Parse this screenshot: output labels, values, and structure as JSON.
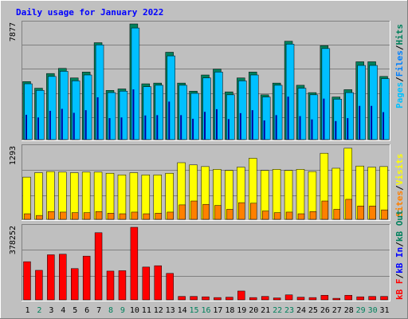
{
  "title": "Daily usage for January 2022",
  "colors": {
    "background": "#c0c0c0",
    "plot_bg": "#bfbfbf",
    "title_text": "#0000ff",
    "axis_text": "#000000",
    "hits": "#00805c",
    "files": "#0080ff",
    "pages": "#00c0ff",
    "visits": "#ffff00",
    "sites": "#ff8000",
    "kbytes": "#ff0000",
    "weekend_day": "#00805c",
    "weekday_day": "#000000"
  },
  "chart_data": [
    {
      "type": "bar",
      "name": "requests",
      "categories": [
        "1",
        "2",
        "3",
        "4",
        "5",
        "6",
        "7",
        "8",
        "9",
        "10",
        "11",
        "12",
        "13",
        "14",
        "15",
        "16",
        "17",
        "18",
        "19",
        "20",
        "21",
        "22",
        "23",
        "24",
        "25",
        "26",
        "27",
        "28",
        "29",
        "30",
        "31"
      ],
      "weekend": [
        false,
        true,
        false,
        false,
        false,
        false,
        false,
        true,
        true,
        false,
        false,
        false,
        false,
        false,
        true,
        true,
        false,
        false,
        false,
        false,
        false,
        true,
        true,
        false,
        false,
        false,
        false,
        false,
        true,
        true,
        false
      ],
      "ylim": [
        0,
        7877
      ],
      "ytick_label": "7877",
      "legend": [
        "Pages",
        "Files",
        "Hits"
      ],
      "series": [
        {
          "name": "Hits",
          "color": "#00805c",
          "values": [
            3950,
            3500,
            4500,
            4850,
            4200,
            4600,
            6600,
            3350,
            3450,
            7877,
            3800,
            3850,
            5950,
            3850,
            3300,
            4400,
            4800,
            3250,
            4200,
            4600,
            3050,
            3850,
            6700,
            3700,
            3200,
            6400,
            2900,
            3400,
            5300,
            5300,
            4300
          ]
        },
        {
          "name": "Files",
          "color": "#0080ff",
          "values": [
            3750,
            3350,
            4350,
            4650,
            4050,
            4450,
            6400,
            3250,
            3350,
            7600,
            3650,
            3700,
            5750,
            3700,
            3150,
            4200,
            4600,
            3100,
            4000,
            4450,
            2900,
            3700,
            6500,
            3550,
            3050,
            6200,
            2800,
            3250,
            5100,
            5100,
            4150
          ]
        },
        {
          "name": "Pages",
          "color": "#00c0ff",
          "values": [
            3800,
            3350,
            4300,
            4650,
            4000,
            4400,
            6450,
            3200,
            3300,
            7600,
            3600,
            3700,
            5700,
            3700,
            3150,
            4200,
            4600,
            3050,
            4000,
            4400,
            2900,
            3700,
            6500,
            3500,
            3050,
            6200,
            2750,
            3200,
            5050,
            5050,
            4150
          ]
        }
      ]
    },
    {
      "type": "bar",
      "name": "visitors",
      "categories": [
        "1",
        "2",
        "3",
        "4",
        "5",
        "6",
        "7",
        "8",
        "9",
        "10",
        "11",
        "12",
        "13",
        "14",
        "15",
        "16",
        "17",
        "18",
        "19",
        "20",
        "21",
        "22",
        "23",
        "24",
        "25",
        "26",
        "27",
        "28",
        "29",
        "30",
        "31"
      ],
      "ylim": [
        0,
        1293
      ],
      "ytick_label": "1293",
      "legend": [
        "Sites",
        "Visits"
      ],
      "series": [
        {
          "name": "Visits",
          "color": "#ffff00",
          "values": [
            760,
            840,
            860,
            850,
            840,
            850,
            850,
            830,
            800,
            840,
            800,
            800,
            830,
            1020,
            980,
            950,
            900,
            880,
            940,
            1100,
            880,
            900,
            880,
            900,
            860,
            1190,
            920,
            1280,
            960,
            940,
            950
          ]
        },
        {
          "name": "Sites",
          "color": "#ff8000",
          "values": [
            100,
            70,
            140,
            130,
            120,
            120,
            140,
            110,
            100,
            130,
            100,
            110,
            130,
            260,
            330,
            270,
            250,
            180,
            300,
            290,
            150,
            120,
            130,
            100,
            140,
            330,
            180,
            360,
            240,
            240,
            170
          ]
        }
      ]
    },
    {
      "type": "bar",
      "name": "kbytes",
      "categories": [
        "1",
        "2",
        "3",
        "4",
        "5",
        "6",
        "7",
        "8",
        "9",
        "10",
        "11",
        "12",
        "13",
        "14",
        "15",
        "16",
        "17",
        "18",
        "19",
        "20",
        "21",
        "22",
        "23",
        "24",
        "25",
        "26",
        "27",
        "28",
        "29",
        "30",
        "31"
      ],
      "ylim": [
        0,
        378252
      ],
      "ytick_label": "378252",
      "legend": [
        "kB F",
        "kB In",
        "kB Out"
      ],
      "series": [
        {
          "name": "kB F",
          "color": "#ff0000",
          "values": [
            199000,
            154000,
            235000,
            238000,
            163000,
            228000,
            350000,
            150000,
            152000,
            378252,
            171000,
            178000,
            138000,
            18000,
            18000,
            16000,
            12000,
            14000,
            46000,
            12000,
            18000,
            10000,
            26000,
            14000,
            12000,
            24000,
            8000,
            24000,
            16000,
            18000,
            18000
          ]
        }
      ]
    }
  ]
}
